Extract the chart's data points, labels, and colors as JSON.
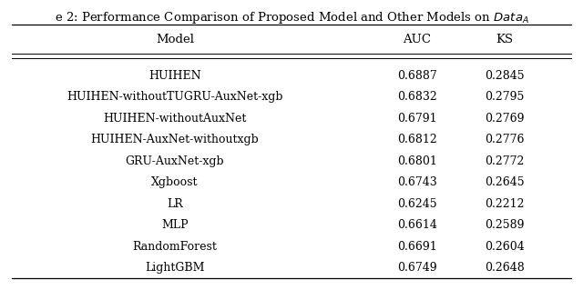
{
  "title": "e 2: Performance Comparison of Proposed Model and Other Models on $Data_A$",
  "columns": [
    "Model",
    "AUC",
    "KS"
  ],
  "rows": [
    [
      "HUIHEN",
      "0.6887",
      "0.2845"
    ],
    [
      "HUIHEN-withoutTUGRU-AuxNet-xgb",
      "0.6832",
      "0.2795"
    ],
    [
      "HUIHEN-withoutAuxNet",
      "0.6791",
      "0.2769"
    ],
    [
      "HUIHEN-AuxNet-withoutxgb",
      "0.6812",
      "0.2776"
    ],
    [
      "GRU-AuxNet-xgb",
      "0.6801",
      "0.2772"
    ],
    [
      "Xgboost",
      "0.6743",
      "0.2645"
    ],
    [
      "LR",
      "0.6245",
      "0.2212"
    ],
    [
      "MLP",
      "0.6614",
      "0.2589"
    ],
    [
      "RandomForest",
      "0.6691",
      "0.2604"
    ],
    [
      "LightGBM",
      "0.6749",
      "0.2648"
    ]
  ],
  "bg_color": "#ffffff",
  "text_color": "#000000",
  "font_size": 9.0,
  "title_font_size": 9.5,
  "figsize": [
    6.4,
    3.19
  ],
  "dpi": 100
}
